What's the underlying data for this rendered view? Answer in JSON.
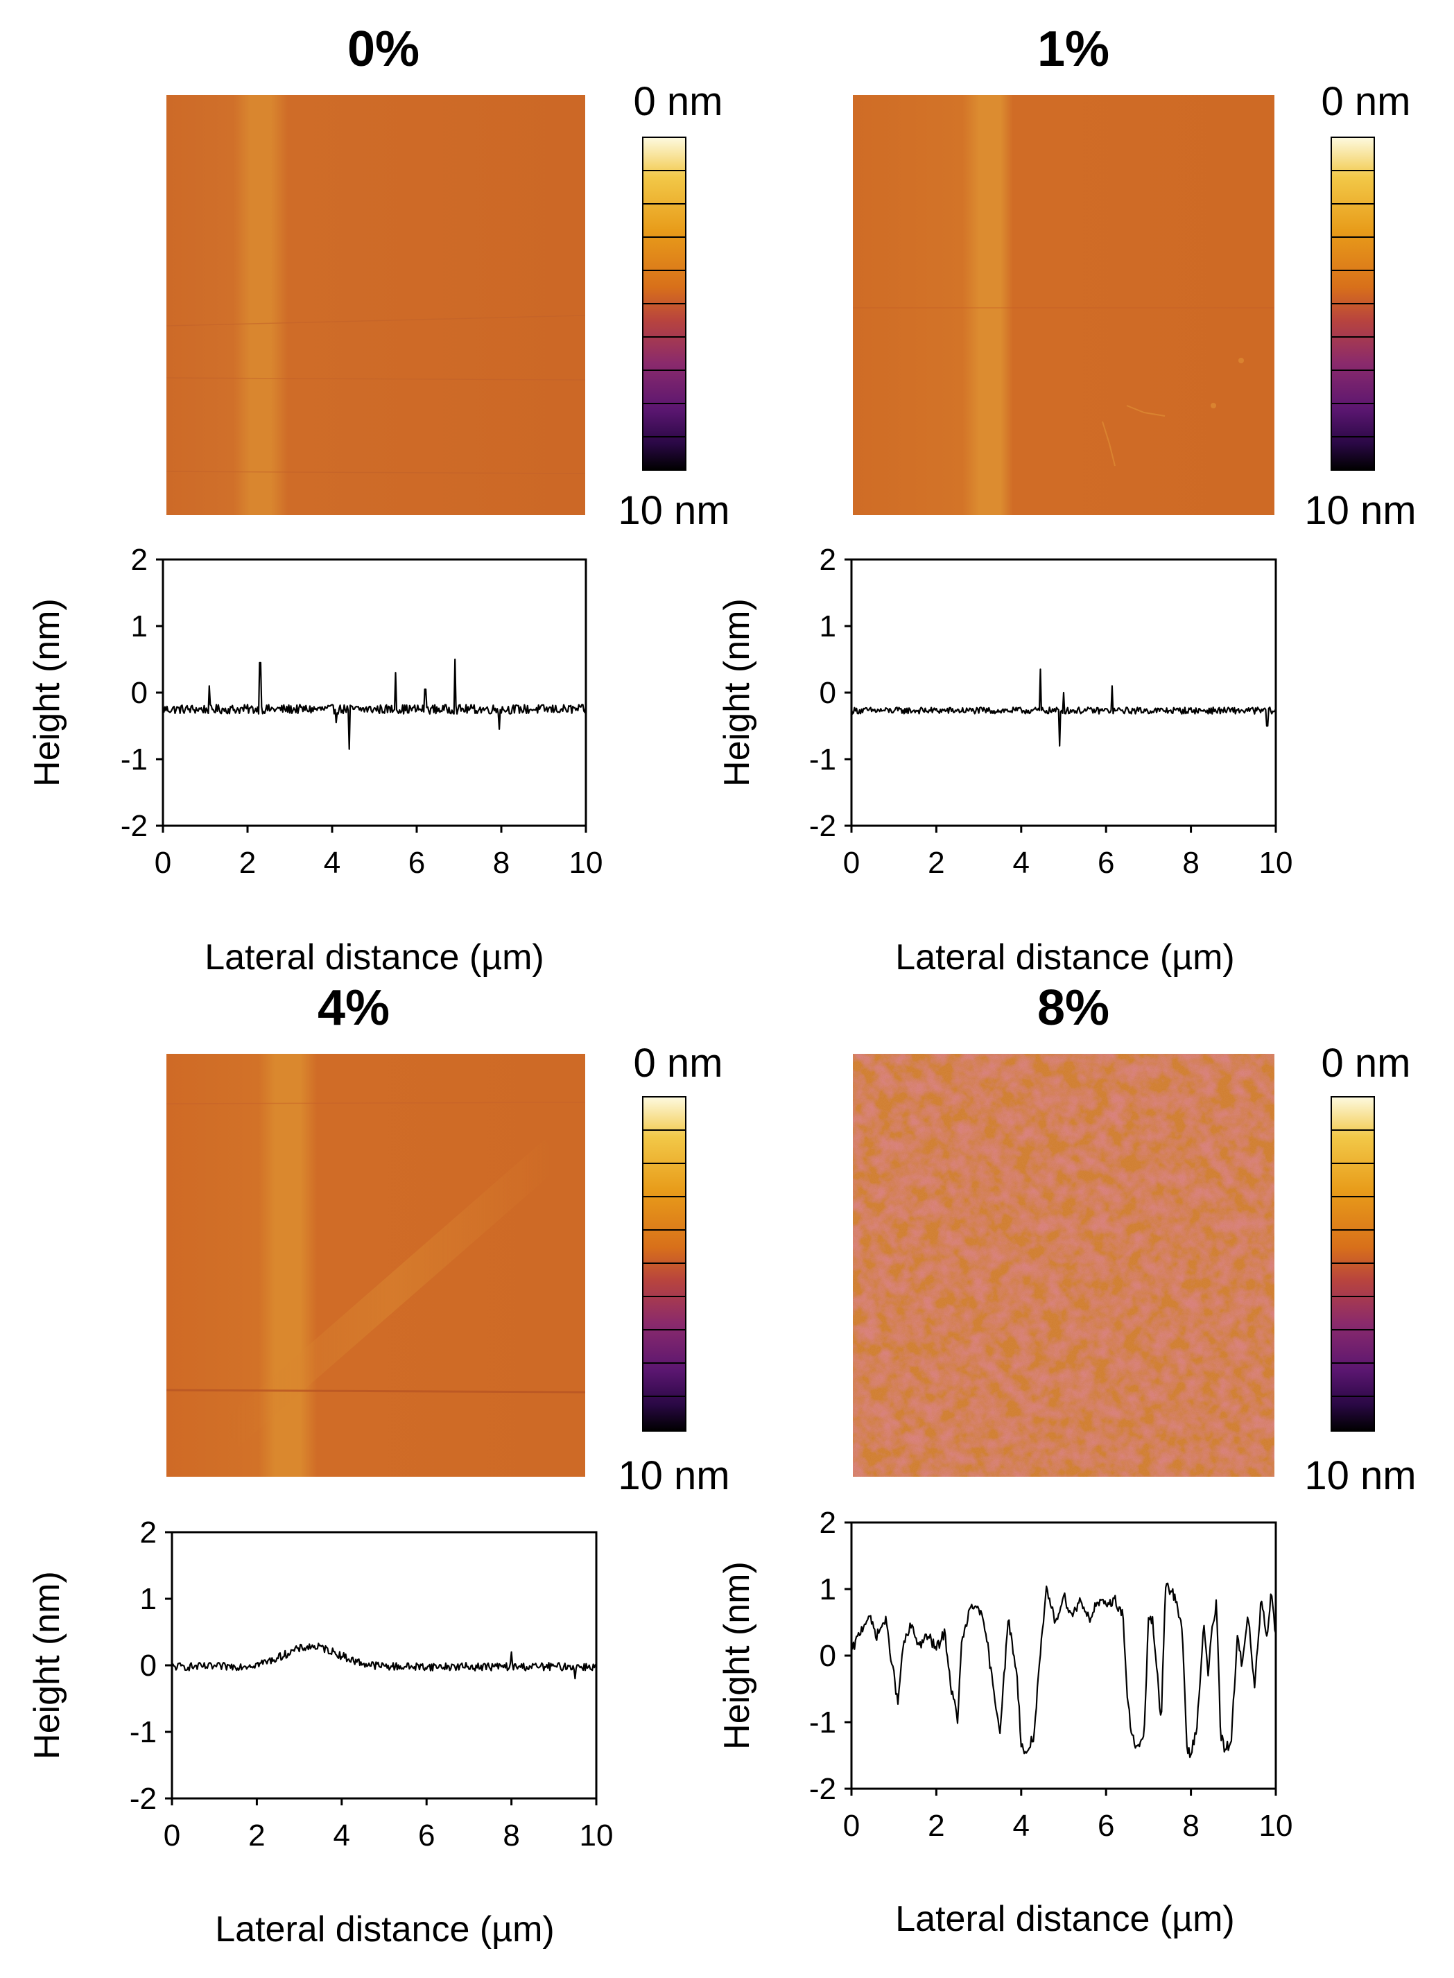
{
  "figure": {
    "colors": {
      "colormap": [
        "#000000",
        "#2a0845",
        "#5a1670",
        "#8a2a6c",
        "#b8443e",
        "#d8701a",
        "#e89c1a",
        "#f2c848",
        "#fdfae0"
      ],
      "background": "#ffffff",
      "trace": "#000000"
    },
    "panels": [
      {
        "title": "0%",
        "colorbar": {
          "top_label": "0 nm",
          "bottom_label": "10 nm"
        },
        "afm_image": {
          "base_color": "#cd6a28",
          "vertical_band_at_um": 2.4,
          "texture": "smooth"
        },
        "profile": {
          "xlabel": "Lateral distance (µm)",
          "ylabel": "Height (nm)",
          "xticks": [
            "0",
            "2",
            "4",
            "6",
            "8",
            "10"
          ],
          "yticks": [
            "2",
            "1",
            "0",
            "-1",
            "-2"
          ],
          "xlim": [
            0,
            10
          ],
          "ylim": [
            -2,
            2
          ],
          "baseline": -0.25,
          "noise": 0.07,
          "spikes": [
            [
              1.1,
              0.1
            ],
            [
              2.3,
              0.45
            ],
            [
              4.1,
              -0.45
            ],
            [
              4.4,
              -0.85
            ],
            [
              5.5,
              0.3
            ],
            [
              6.2,
              0.05
            ],
            [
              6.9,
              0.5
            ],
            [
              7.95,
              -0.55
            ]
          ]
        }
      },
      {
        "title": "1%",
        "colorbar": {
          "top_label": "0 nm",
          "bottom_label": "10 nm"
        },
        "afm_image": {
          "base_color": "#cf6c26",
          "vertical_band_at_um": 3.4,
          "texture": "smooth"
        },
        "profile": {
          "xlabel": "Lateral distance (µm)",
          "ylabel": "Height (nm)",
          "xticks": [
            "0",
            "2",
            "4",
            "6",
            "8",
            "10"
          ],
          "yticks": [
            "2",
            "1",
            "0",
            "-1",
            "-2"
          ],
          "xlim": [
            0,
            10
          ],
          "ylim": [
            -2,
            2
          ],
          "baseline": -0.27,
          "noise": 0.05,
          "spikes": [
            [
              4.45,
              0.35
            ],
            [
              4.9,
              -0.8
            ],
            [
              5.0,
              0.0
            ],
            [
              6.15,
              0.1
            ],
            [
              9.8,
              -0.5
            ]
          ]
        }
      },
      {
        "title": "4%",
        "colorbar": {
          "top_label": "0 nm",
          "bottom_label": "10 nm"
        },
        "afm_image": {
          "base_color": "#cf6a26",
          "vertical_band_at_um": 3.0,
          "texture": "diagonal-ridge"
        },
        "profile": {
          "xlabel": "Lateral distance (µm)",
          "ylabel": "Height (nm)",
          "xticks": [
            "0",
            "2",
            "4",
            "6",
            "8",
            "10"
          ],
          "yticks": [
            "2",
            "1",
            "0",
            "-1",
            "-2"
          ],
          "xlim": [
            0,
            10
          ],
          "ylim": [
            -2,
            2
          ],
          "baseline": -0.02,
          "noise": 0.06,
          "hump": {
            "center": 3.3,
            "height": 0.3,
            "width": 0.9
          },
          "spikes": [
            [
              8.0,
              0.2
            ],
            [
              9.5,
              -0.2
            ]
          ]
        }
      },
      {
        "title": "8%",
        "colorbar": {
          "top_label": "0 nm",
          "bottom_label": "10 nm"
        },
        "afm_image": {
          "base_color": "#cf7a2a",
          "texture": "porous-mottled"
        },
        "profile": {
          "xlabel": "Lateral distance (µm)",
          "ylabel": "Height (nm)",
          "xticks": [
            "0",
            "2",
            "4",
            "6",
            "8",
            "10"
          ],
          "yticks": [
            "2",
            "1",
            "0",
            "-1",
            "-2"
          ],
          "xlim": [
            0,
            10
          ],
          "ylim": [
            -2,
            2
          ],
          "points": [
            [
              0,
              0.05
            ],
            [
              0.2,
              0.35
            ],
            [
              0.4,
              0.6
            ],
            [
              0.6,
              0.3
            ],
            [
              0.8,
              0.55
            ],
            [
              1.0,
              -0.3
            ],
            [
              1.1,
              -0.75
            ],
            [
              1.2,
              0.1
            ],
            [
              1.4,
              0.45
            ],
            [
              1.6,
              0.15
            ],
            [
              1.8,
              0.3
            ],
            [
              2.0,
              0.1
            ],
            [
              2.2,
              0.35
            ],
            [
              2.35,
              -0.5
            ],
            [
              2.5,
              -0.95
            ],
            [
              2.6,
              0.2
            ],
            [
              2.8,
              0.7
            ],
            [
              3.0,
              0.75
            ],
            [
              3.2,
              0.2
            ],
            [
              3.35,
              -0.55
            ],
            [
              3.5,
              -1.1
            ],
            [
              3.7,
              0.55
            ],
            [
              3.9,
              -0.3
            ],
            [
              4.0,
              -1.3
            ],
            [
              4.1,
              -1.5
            ],
            [
              4.3,
              -1.2
            ],
            [
              4.45,
              0.0
            ],
            [
              4.6,
              1.0
            ],
            [
              4.8,
              0.5
            ],
            [
              5.0,
              0.9
            ],
            [
              5.2,
              0.6
            ],
            [
              5.4,
              0.85
            ],
            [
              5.6,
              0.55
            ],
            [
              5.8,
              0.8
            ],
            [
              6.0,
              0.75
            ],
            [
              6.2,
              0.85
            ],
            [
              6.4,
              0.6
            ],
            [
              6.5,
              -0.6
            ],
            [
              6.6,
              -1.2
            ],
            [
              6.75,
              -1.4
            ],
            [
              6.9,
              -1.2
            ],
            [
              7.0,
              0.6
            ],
            [
              7.1,
              0.5
            ],
            [
              7.3,
              -1.0
            ],
            [
              7.4,
              1.1
            ],
            [
              7.6,
              0.9
            ],
            [
              7.8,
              0.4
            ],
            [
              7.9,
              -1.4
            ],
            [
              8.0,
              -1.5
            ],
            [
              8.15,
              -1.0
            ],
            [
              8.3,
              0.5
            ],
            [
              8.4,
              -0.3
            ],
            [
              8.5,
              0.4
            ],
            [
              8.6,
              0.8
            ],
            [
              8.7,
              -1.2
            ],
            [
              8.8,
              -1.4
            ],
            [
              8.95,
              -1.3
            ],
            [
              9.1,
              0.4
            ],
            [
              9.2,
              -0.2
            ],
            [
              9.35,
              0.6
            ],
            [
              9.5,
              -0.5
            ],
            [
              9.65,
              0.8
            ],
            [
              9.8,
              0.3
            ],
            [
              9.9,
              1.0
            ],
            [
              10.0,
              0.3
            ]
          ],
          "noise": 0.08
        }
      }
    ]
  }
}
